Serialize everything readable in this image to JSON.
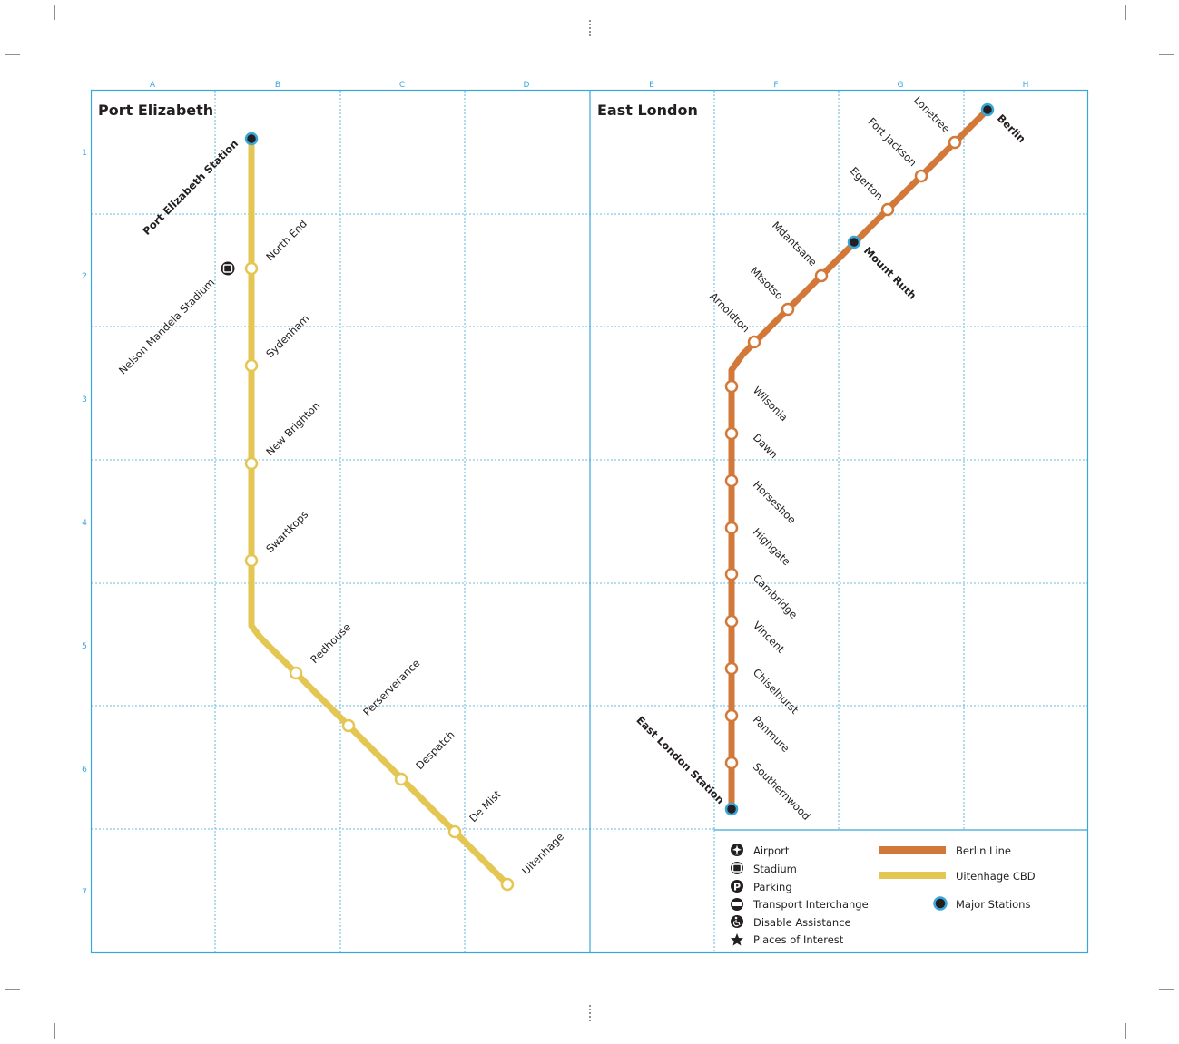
{
  "colors": {
    "frame": "#3aa6d8",
    "grid": "#3aa6d8",
    "berlin_line": "#d2793a",
    "uitenhage_line": "#e4c653",
    "major_station_fill": "#231f20",
    "major_station_ring": "#3aa6d8",
    "text": "#231f20"
  },
  "grid": {
    "columns": [
      "A",
      "B",
      "C",
      "D",
      "E",
      "F",
      "G",
      "H"
    ],
    "rows": [
      "1",
      "2",
      "3",
      "4",
      "5",
      "6",
      "7"
    ]
  },
  "panels": {
    "left_title": "Port Elizabeth",
    "right_title": "East London"
  },
  "lines": {
    "uitenhage": {
      "name": "Uitenhage CBD",
      "stations": [
        {
          "name": "Port Elizabeth Station",
          "major": true
        },
        {
          "name": "North End",
          "major": false
        },
        {
          "name": "Sydenham",
          "major": false
        },
        {
          "name": "New Brighton",
          "major": false
        },
        {
          "name": "Swartkops",
          "major": false
        },
        {
          "name": "Redhouse",
          "major": false
        },
        {
          "name": "Perserverance",
          "major": false
        },
        {
          "name": "Despatch",
          "major": false
        },
        {
          "name": "De Mist",
          "major": false
        },
        {
          "name": "Uitenhage",
          "major": false
        }
      ]
    },
    "berlin": {
      "name": "Berlin Line",
      "stations": [
        {
          "name": "Berlin",
          "major": true
        },
        {
          "name": "Lonetree",
          "major": false
        },
        {
          "name": "Fort Jackson",
          "major": false
        },
        {
          "name": "Egerton",
          "major": false
        },
        {
          "name": "Mount Ruth",
          "major": true
        },
        {
          "name": "Mdantsane",
          "major": false
        },
        {
          "name": "Mtsotso",
          "major": false
        },
        {
          "name": "Arnoldton",
          "major": false
        },
        {
          "name": "Wilsonia",
          "major": false
        },
        {
          "name": "Dawn",
          "major": false
        },
        {
          "name": "Horseshoe",
          "major": false
        },
        {
          "name": "Highgate",
          "major": false
        },
        {
          "name": "Cambridge",
          "major": false
        },
        {
          "name": "Vincent",
          "major": false
        },
        {
          "name": "Chiselhurst",
          "major": false
        },
        {
          "name": "Panmure",
          "major": false
        },
        {
          "name": "Southernwood",
          "major": false
        },
        {
          "name": "East London Station",
          "major": true
        }
      ]
    }
  },
  "poi": {
    "stadium_label": "Nelson Mandela Stadium"
  },
  "legend": {
    "icons": [
      {
        "icon": "airport-icon",
        "label": "Airport"
      },
      {
        "icon": "stadium-icon",
        "label": "Stadium"
      },
      {
        "icon": "parking-icon",
        "label": "Parking"
      },
      {
        "icon": "transport-interchange-icon",
        "label": "Transport Interchange"
      },
      {
        "icon": "disable-assistance-icon",
        "label": "Disable Assistance"
      },
      {
        "icon": "star-icon",
        "label": "Places of Interest"
      }
    ],
    "berlin_line": "Berlin Line",
    "uitenhage_cbd": "Uitenhage CBD",
    "major_stations": "Major Stations"
  }
}
